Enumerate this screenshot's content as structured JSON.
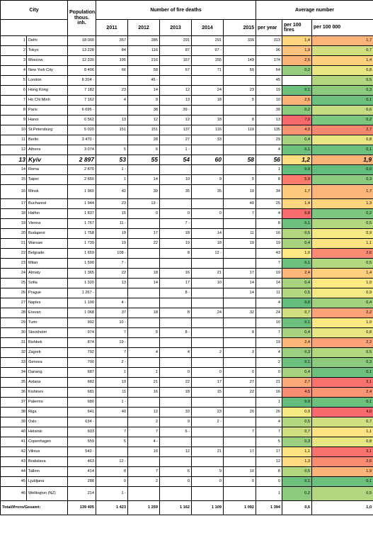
{
  "headers": {
    "city": "City",
    "population": "Population, thous. inh.",
    "deaths_group": "Number of fire deaths",
    "average_group": "Average number",
    "years": [
      "2011",
      "2012",
      "2013",
      "2014",
      "2015"
    ],
    "per_year": "per year",
    "per_100_fires": "per 100 fires",
    "per_100000": "per 100 000"
  },
  "colors": {
    "green": "#63be7b",
    "yellow": "#ffeb84",
    "orange": "#fba977",
    "red": "#f8696b",
    "white": "#ffffff"
  },
  "rows": [
    {
      "idx": "1",
      "city": "Delhi",
      "pop": "18 000",
      "y": [
        "357",
        "285",
        "291",
        "291",
        "339"
      ],
      "per_year": "313",
      "p100f": "1,4",
      "p100k": "1,7",
      "c1": "#ffd580",
      "c2": "#fdb479"
    },
    {
      "idx": "2",
      "city": "Tokyo",
      "pop": "13 228",
      "y": [
        "84",
        "116",
        "87",
        "97 -",
        ""
      ],
      "per_year": "96",
      "p100f": "1,9",
      "p100k": "0,7",
      "c1": "#fdc27c",
      "c2": "#d2df81"
    },
    {
      "idx": "3",
      "city": "Moscow",
      "pop": "12 330",
      "y": [
        "195",
        "216",
        "157",
        "155",
        "149"
      ],
      "per_year": "174",
      "p100f": "2,5",
      "p100k": "1,4",
      "c1": "#fcb378",
      "c2": "#fed07e"
    },
    {
      "idx": "4",
      "city": "New York City",
      "pop": "8 406",
      "y": [
        "66",
        "58",
        "67",
        "71",
        "59"
      ],
      "per_year": "64",
      "p100f": "0,2",
      "p100k": "0,8",
      "c1": "#96ce7f",
      "c2": "#e8e583"
    },
    {
      "idx": "5",
      "city": "London",
      "pop": "8 204 -",
      "y": [
        "",
        "45 -",
        "",
        "",
        ""
      ],
      "per_year": "45",
      "p100f": "",
      "p100k": "0,5",
      "c1": "#ffffff",
      "c2": "#b3d77f"
    },
    {
      "idx": "6",
      "city": "Hong Kong",
      "pop": "7 182",
      "y": [
        "23",
        "14",
        "12",
        "24",
        "23"
      ],
      "per_year": "19",
      "p100f": "0,1",
      "p100k": "0,3",
      "c1": "#6dc17c",
      "c2": "#8ccb7e"
    },
    {
      "idx": "7",
      "city": "Ho Chi Minh",
      "pop": "7 162",
      "y": [
        "4",
        "9",
        "13",
        "18",
        "5"
      ],
      "per_year": "10",
      "p100f": "2,5",
      "p100k": "0,1",
      "c1": "#fcb378",
      "c2": "#6bc07c"
    },
    {
      "idx": "8",
      "city": "Paris",
      "pop": "6 695 -",
      "y": [
        "",
        "38",
        "39 -",
        "",
        ""
      ],
      "per_year": "39",
      "p100f": "0,2",
      "p100k": "0,6",
      "c1": "#8ccb7e",
      "c2": "#c4dd81"
    },
    {
      "idx": "9",
      "city": "Hanoi",
      "pop": "6 562",
      "y": [
        "13",
        "12",
        "12",
        "18",
        "8"
      ],
      "per_year": "13",
      "p100f": "7,0",
      "p100k": "0,2",
      "c1": "#f8696b",
      "c2": "#7dc67d"
    },
    {
      "idx": "10",
      "city": "St.Petersburg",
      "pop": "5 020",
      "y": [
        "151",
        "151",
        "137",
        "116",
        "119"
      ],
      "per_year": "135",
      "p100f": "4,0",
      "p100k": "2,7",
      "c1": "#fa9373",
      "c2": "#f98770"
    },
    {
      "idx": "11",
      "city": "Berlin",
      "pop": "3 470 -",
      "y": [
        "",
        "28",
        "27",
        "33",
        ""
      ],
      "per_year": "29",
      "p100f": "0,4",
      "p100k": "0,8",
      "c1": "#a7d37f",
      "c2": "#e8e583"
    },
    {
      "idx": "12",
      "city": "Athens",
      "pop": "3 074",
      "y": [
        "5",
        "6",
        "1 -",
        ""
      ],
      "per_year": "4",
      "p100f": "0,1",
      "p100k": "0,1",
      "c1": "#6dc17c",
      "c2": "#6bc07c"
    },
    {
      "idx": "13",
      "city": "Kyiv",
      "pop": "2 897",
      "y": [
        "53",
        "55",
        "54",
        "60",
        "58"
      ],
      "per_year": "56",
      "p100f": "1,2",
      "p100k": "1,9",
      "c1": "#fede81",
      "c2": "#fcb378",
      "hl": true
    },
    {
      "idx": "14",
      "city": "Roma",
      "pop": "2 870",
      "y": [
        "1 -",
        "",
        "",
        "",
        ""
      ],
      "per_year": "1",
      "p100f": "0,0",
      "p100k": "0,0",
      "c1": "#63be7b",
      "c2": "#63be7b"
    },
    {
      "idx": "15",
      "city": "Taipei",
      "pop": "2 650",
      "y": [
        "1",
        "14",
        "10",
        "9",
        "5"
      ],
      "per_year": "8",
      "p100f": "5,9",
      "p100k": "0,3",
      "c1": "#f97b6e",
      "c2": "#8ccb7e"
    },
    {
      "idx": "16",
      "city": "Minsk",
      "pop": "1 960",
      "y": [
        "42",
        "39",
        "35",
        "35",
        "19"
      ],
      "per_year": "34",
      "p100f": "1,7",
      "p100k": "1,7",
      "c1": "#fdc97d",
      "c2": "#fdb479",
      "tall": true
    },
    {
      "idx": "17",
      "city": "Bucharest",
      "pop": "1 944",
      "y": [
        "23",
        "13 -",
        "",
        "",
        "40"
      ],
      "per_year": "25",
      "p100f": "1,4",
      "p100k": "1,3",
      "c1": "#ffd580",
      "c2": "#fed47f"
    },
    {
      "idx": "18",
      "city": "Haifon",
      "pop": "1 837",
      "y": [
        "15",
        "0",
        "0",
        "0",
        "7"
      ],
      "per_year": "4",
      "p100f": "6,8",
      "p100k": "0,2",
      "c1": "#f86c6c",
      "c2": "#7dc67d"
    },
    {
      "idx": "19",
      "city": "Vienna",
      "pop": "1 767",
      "y": [
        "11 -",
        "",
        "7 -",
        "",
        ""
      ],
      "per_year": "8",
      "p100f": "0,1",
      "p100k": "0,5",
      "c1": "#6dc17c",
      "c2": "#b3d77f"
    },
    {
      "idx": "20",
      "city": "Budapest",
      "pop": "1 758",
      "y": [
        "19",
        "17",
        "18",
        "14",
        "11"
      ],
      "per_year": "16",
      "p100f": "0,5",
      "p100k": "0,9",
      "c1": "#b3d77f",
      "c2": "#f5e984"
    },
    {
      "idx": "21",
      "city": "Warsaw",
      "pop": "1 739",
      "y": [
        "19",
        "22",
        "19",
        "18",
        "19"
      ],
      "per_year": "19",
      "p100f": "0,4",
      "p100k": "1,1",
      "c1": "#a7d37f",
      "c2": "#fee382"
    },
    {
      "idx": "22",
      "city": "Belgrade",
      "pop": "1 659",
      "y": [
        "108 -",
        "",
        "8",
        "12 -",
        ""
      ],
      "per_year": "43",
      "p100f": "1,0",
      "p100k": "2,6",
      "c1": "#fee982",
      "c2": "#f98b71"
    },
    {
      "idx": "23",
      "city": "Milan",
      "pop": "1 500",
      "y": [
        "7 -",
        "",
        "",
        "",
        ""
      ],
      "per_year": "7",
      "p100f": "0,1",
      "p100k": "0,5",
      "c1": "#6dc17c",
      "c2": "#b3d77f"
    },
    {
      "idx": "24",
      "city": "Almaty",
      "pop": "1 365",
      "y": [
        "22",
        "18",
        "16",
        "21",
        "17"
      ],
      "per_year": "19",
      "p100f": "2,4",
      "p100k": "1,4",
      "c1": "#fcb678",
      "c2": "#fed07e"
    },
    {
      "idx": "25",
      "city": "Sofia",
      "pop": "1 320",
      "y": [
        "13",
        "14",
        "17",
        "10",
        "14"
      ],
      "per_year": "14",
      "p100f": "0,4",
      "p100k": "1,0",
      "c1": "#a7d37f",
      "c2": "#fee982"
    },
    {
      "idx": "26",
      "city": "Prague",
      "pop": "1 267 -",
      "y": [
        "",
        "",
        "8 -",
        "",
        "14"
      ],
      "per_year": "11",
      "p100f": "0,5",
      "p100k": "0,9",
      "c1": "#b3d77f",
      "c2": "#f5e984"
    },
    {
      "idx": "27",
      "city": "Naples",
      "pop": "1 100",
      "y": [
        "4 -",
        "",
        "",
        "",
        ""
      ],
      "per_year": "4",
      "p100f": "0,0",
      "p100k": "0,4",
      "c1": "#63be7b",
      "c2": "#a3d27f"
    },
    {
      "idx": "28",
      "city": "Erevan",
      "pop": "1 068",
      "y": [
        "37",
        "18",
        "8",
        "24",
        "32"
      ],
      "per_year": "24",
      "p100f": "0,7",
      "p100k": "2,2",
      "c1": "#d0de81",
      "c2": "#fba276"
    },
    {
      "idx": "29",
      "city": "Turin",
      "pop": "992",
      "y": [
        "10 -",
        "",
        "",
        "",
        ""
      ],
      "per_year": "10",
      "p100f": "0,1",
      "p100k": "1,0",
      "c1": "#6dc17c",
      "c2": "#fee982"
    },
    {
      "idx": "30",
      "city": "Stockholm",
      "pop": "974",
      "y": [
        "7",
        "5",
        "8 -",
        "",
        "8"
      ],
      "per_year": "7",
      "p100f": "0,4",
      "p100k": "0,8",
      "c1": "#a7d37f",
      "c2": "#e8e583"
    },
    {
      "idx": "31",
      "city": "Bishkek",
      "pop": "874",
      "y": [
        "19 -",
        "",
        "",
        "",
        ""
      ],
      "per_year": "19",
      "p100f": "2,4",
      "p100k": "2,2",
      "c1": "#fcb678",
      "c2": "#fba276"
    },
    {
      "idx": "32",
      "city": "Zagreb",
      "pop": "792",
      "y": [
        "7",
        "4",
        "4",
        "2",
        "3"
      ],
      "per_year": "4",
      "p100f": "0,3",
      "p100k": "0,5",
      "c1": "#9ad07f",
      "c2": "#b3d77f"
    },
    {
      "idx": "33",
      "city": "Genova",
      "pop": "700",
      "y": [
        "2 -",
        "",
        "",
        "",
        ""
      ],
      "per_year": "2",
      "p100f": "0,1",
      "p100k": "0,3",
      "c1": "#6dc17c",
      "c2": "#8ccb7e"
    },
    {
      "idx": "34",
      "city": "Danang",
      "pop": "687",
      "y": [
        "1",
        "1",
        "0",
        "0",
        "0"
      ],
      "per_year": "0",
      "p100f": "0,4",
      "p100k": "0,1",
      "c1": "#a7d37f",
      "c2": "#6bc07c"
    },
    {
      "idx": "35",
      "city": "Astana",
      "pop": "682",
      "y": [
        "19",
        "21",
        "22",
        "17",
        "27"
      ],
      "per_year": "21",
      "p100f": "2,7",
      "p100k": "3,1",
      "c1": "#fbaa77",
      "c2": "#f8736d"
    },
    {
      "idx": "36",
      "city": "Kishinev",
      "pop": "681",
      "y": [
        "11",
        "16",
        "18",
        "15",
        "22"
      ],
      "per_year": "16",
      "p100f": "4,5",
      "p100k": "2,4",
      "c1": "#f98d72",
      "c2": "#fa9673"
    },
    {
      "idx": "37",
      "city": "Palermo",
      "pop": "680",
      "y": [
        "1 -",
        "",
        "",
        "",
        ""
      ],
      "per_year": "1",
      "p100f": "0,0",
      "p100k": "0,1",
      "c1": "#63be7b",
      "c2": "#6bc07c"
    },
    {
      "idx": "38",
      "city": "Riga",
      "pop": "641",
      "y": [
        "40",
        "12",
        "33",
        "23",
        "20"
      ],
      "per_year": "26",
      "p100f": "0,9",
      "p100k": "4,0",
      "c1": "#f5e984",
      "c2": "#f8696b"
    },
    {
      "idx": "39",
      "city": "Oslo",
      "pop": "634 -",
      "y": [
        "",
        "2",
        "9",
        "2 -",
        ""
      ],
      "per_year": "4",
      "p100f": "0,5",
      "p100k": "0,7",
      "c1": "#b3d77f",
      "c2": "#d2df81"
    },
    {
      "idx": "40",
      "city": "Helsinki",
      "pop": "603",
      "y": [
        "7",
        "7",
        "6 -",
        "",
        "7"
      ],
      "per_year": "7",
      "p100f": "0,7",
      "p100k": "1,1",
      "c1": "#d0de81",
      "c2": "#fee382"
    },
    {
      "idx": "41",
      "city": "Copenhagen",
      "pop": "559",
      "y": [
        "5",
        "4 -",
        "",
        "",
        ""
      ],
      "per_year": "5",
      "p100f": "0,3",
      "p100k": "0,8",
      "c1": "#9ad07f",
      "c2": "#e8e583"
    },
    {
      "idx": "42",
      "city": "Vilnius",
      "pop": "543 -",
      "y": [
        "",
        "16",
        "12",
        "21",
        "17"
      ],
      "per_year": "17",
      "p100f": "1,1",
      "p100k": "3,1",
      "c1": "#fee382",
      "c2": "#f8736d"
    },
    {
      "idx": "43",
      "city": "Bratislava",
      "pop": "463",
      "y": [
        "12 -",
        "",
        "",
        "",
        ""
      ],
      "per_year": "12",
      "p100f": "1,3",
      "p100k": "2,6",
      "c1": "#feda80",
      "c2": "#f98b71"
    },
    {
      "idx": "44",
      "city": "Tallinn",
      "pop": "414",
      "y": [
        "8",
        "7",
        "6",
        "9",
        "10"
      ],
      "per_year": "8",
      "p100f": "0,5",
      "p100k": "1,9",
      "c1": "#b3d77f",
      "c2": "#fcb378"
    },
    {
      "idx": "45",
      "city": "Ljubljana",
      "pop": "288",
      "y": [
        "0",
        "2",
        "0",
        "0",
        "0"
      ],
      "per_year": "0",
      "p100f": "0,1",
      "p100k": "0,1",
      "c1": "#6dc17c",
      "c2": "#6bc07c"
    },
    {
      "idx": "46",
      "city": "Wellington (NZ)",
      "pop": "214",
      "y": [
        "1 -",
        "",
        "",
        "",
        ""
      ],
      "per_year": "1",
      "p100f": "0,2",
      "p100k": "0,5",
      "c1": "#8ccb7e",
      "c2": "#b3d77f",
      "tall": true
    }
  ],
  "total": {
    "label": "Total/Итого/Gesamt:",
    "pop": "139 405",
    "y": [
      "1 423",
      "1 259",
      "1 162",
      "1 109",
      "1 092"
    ],
    "per_year": "1 394",
    "p100f": "0,6",
    "p100k": "1,0"
  }
}
